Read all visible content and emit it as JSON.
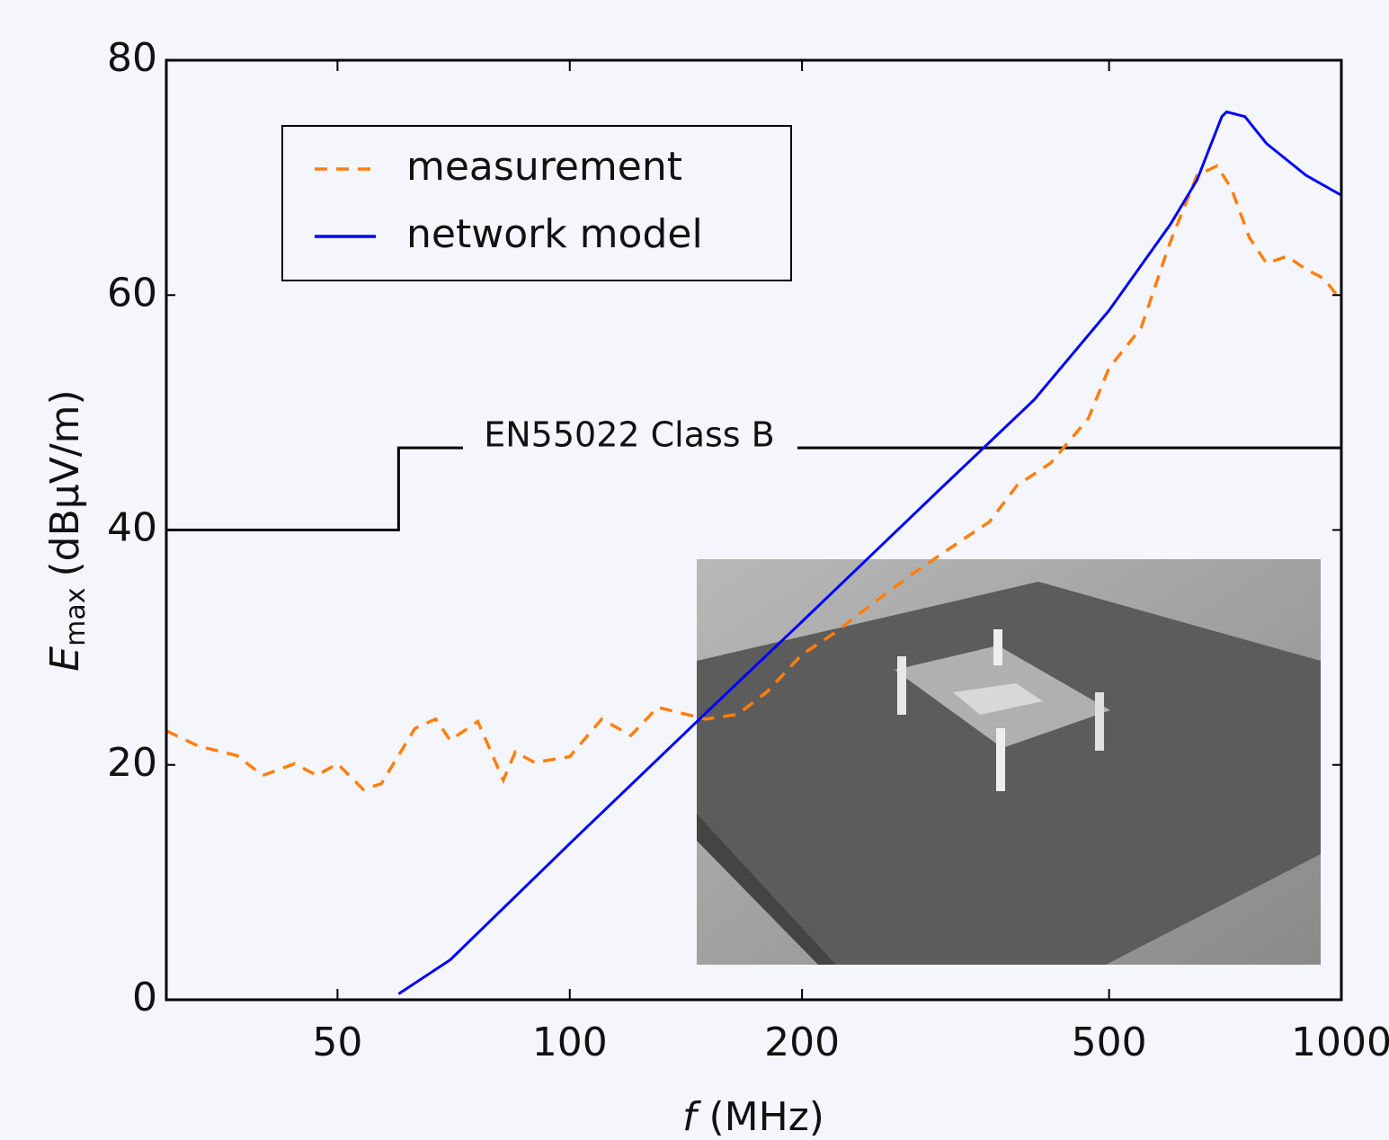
{
  "chart_data": {
    "type": "line",
    "xscale": "log",
    "xlabel": {
      "symbol": "f",
      "unit": "(MHz)"
    },
    "ylabel": {
      "symbol": "E",
      "subscript": "max",
      "unit": "(dBμV/m)"
    },
    "xlim": [
      30,
      1000
    ],
    "ylim": [
      0,
      80
    ],
    "xticks": [
      50,
      100,
      200,
      500,
      1000
    ],
    "yticks": [
      0,
      20,
      40,
      60,
      80
    ],
    "legend": "upper left",
    "series": [
      {
        "name": "measurement",
        "color": "#ff7f0e",
        "dash": true,
        "x": [
          30,
          33,
          37,
          40,
          44,
          47,
          50,
          54,
          57,
          63,
          67,
          70,
          76,
          82,
          85,
          90,
          100,
          110,
          120,
          130,
          150,
          165,
          180,
          200,
          220,
          250,
          280,
          320,
          350,
          380,
          420,
          470,
          500,
          550,
          600,
          650,
          690,
          720,
          760,
          800,
          850,
          900,
          950,
          1000
        ],
        "values": [
          22.9,
          21.6,
          20.8,
          19.1,
          20.1,
          19.1,
          20.1,
          17.9,
          18.4,
          23.1,
          23.9,
          22.1,
          23.7,
          18.7,
          21.1,
          20.2,
          20.7,
          23.9,
          22.5,
          24.9,
          23.9,
          24.3,
          26.2,
          29.4,
          31.2,
          34,
          36.4,
          39,
          40.7,
          43.8,
          45.7,
          49.5,
          53.8,
          57.2,
          64.5,
          70.2,
          71,
          69.1,
          64.9,
          62.7,
          63.3,
          62.2,
          61.4,
          59.5
        ]
      },
      {
        "name": "network model",
        "color": "#0000ff",
        "dash": false,
        "x": [
          60,
          70,
          100,
          150,
          200,
          300,
          400,
          500,
          600,
          650,
          700,
          710,
          750,
          800,
          900,
          1000
        ],
        "values": [
          0.5,
          3.4,
          13.3,
          24.4,
          32.2,
          43.3,
          51.1,
          58.7,
          66,
          69.8,
          75.2,
          75.6,
          75.2,
          72.9,
          70.2,
          68.5
        ]
      }
    ],
    "limit": {
      "label": "EN55022 Class B",
      "color": "#000000",
      "x": [
        30,
        60,
        60,
        1000
      ],
      "values": [
        40,
        40,
        47,
        47
      ]
    }
  }
}
